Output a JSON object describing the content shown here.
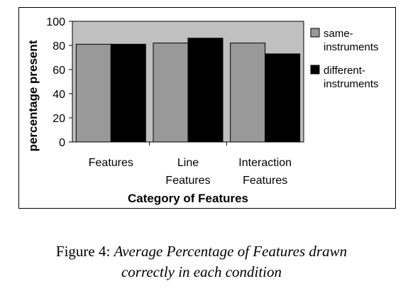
{
  "chart_data": {
    "type": "bar",
    "categories": [
      [
        "Features"
      ],
      [
        "Line",
        "Features"
      ],
      [
        "Interaction",
        "Features"
      ]
    ],
    "series": [
      {
        "name": "same-instruments",
        "legend_lines": [
          "same-",
          "instruments"
        ],
        "color": "#999999",
        "values": [
          81,
          82,
          82
        ]
      },
      {
        "name": "different-instruments",
        "legend_lines": [
          "different-",
          "instruments"
        ],
        "color": "#000000",
        "values": [
          81,
          86,
          73
        ]
      }
    ],
    "xlabel": "Category of Features",
    "ylabel": "percentage present",
    "ylim": [
      0,
      100
    ],
    "yticks": [
      "0",
      "20",
      "40",
      "60",
      "80",
      "100"
    ],
    "plot_background": "#c0c0c0",
    "legend_position": "right",
    "grid": false
  },
  "caption": {
    "prefix": "Figure 4: ",
    "italic_line1": "Average Percentage of Features drawn",
    "italic_line2": "correctly in each condition"
  }
}
